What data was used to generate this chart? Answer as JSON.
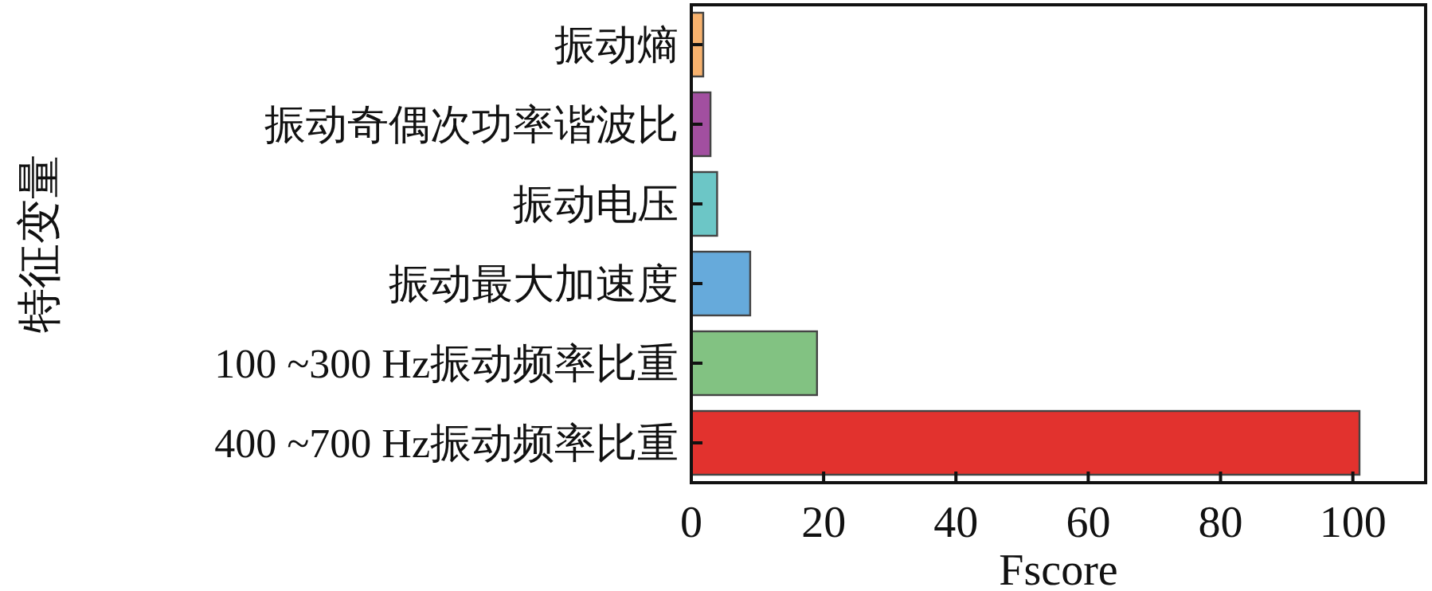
{
  "chart_data": {
    "type": "bar",
    "orientation": "horizontal",
    "xlabel": "Fscore",
    "ylabel": "特征变量",
    "categories": [
      "振动熵",
      "振动奇偶次功率谐波比",
      "振动电压",
      "振动最大加速度",
      "100 ~300 Hz振动频率比重",
      "400 ~700 Hz振动频率比重"
    ],
    "values": [
      1.8,
      2.9,
      3.9,
      8.9,
      19,
      101
    ],
    "colors": [
      "#f7b26e",
      "#a24fa0",
      "#6cc6c6",
      "#66aadb",
      "#82c282",
      "#e2322e"
    ],
    "xlim": [
      0,
      111
    ],
    "xticks": [
      0,
      20,
      40,
      60,
      80,
      100
    ],
    "grid": false
  }
}
